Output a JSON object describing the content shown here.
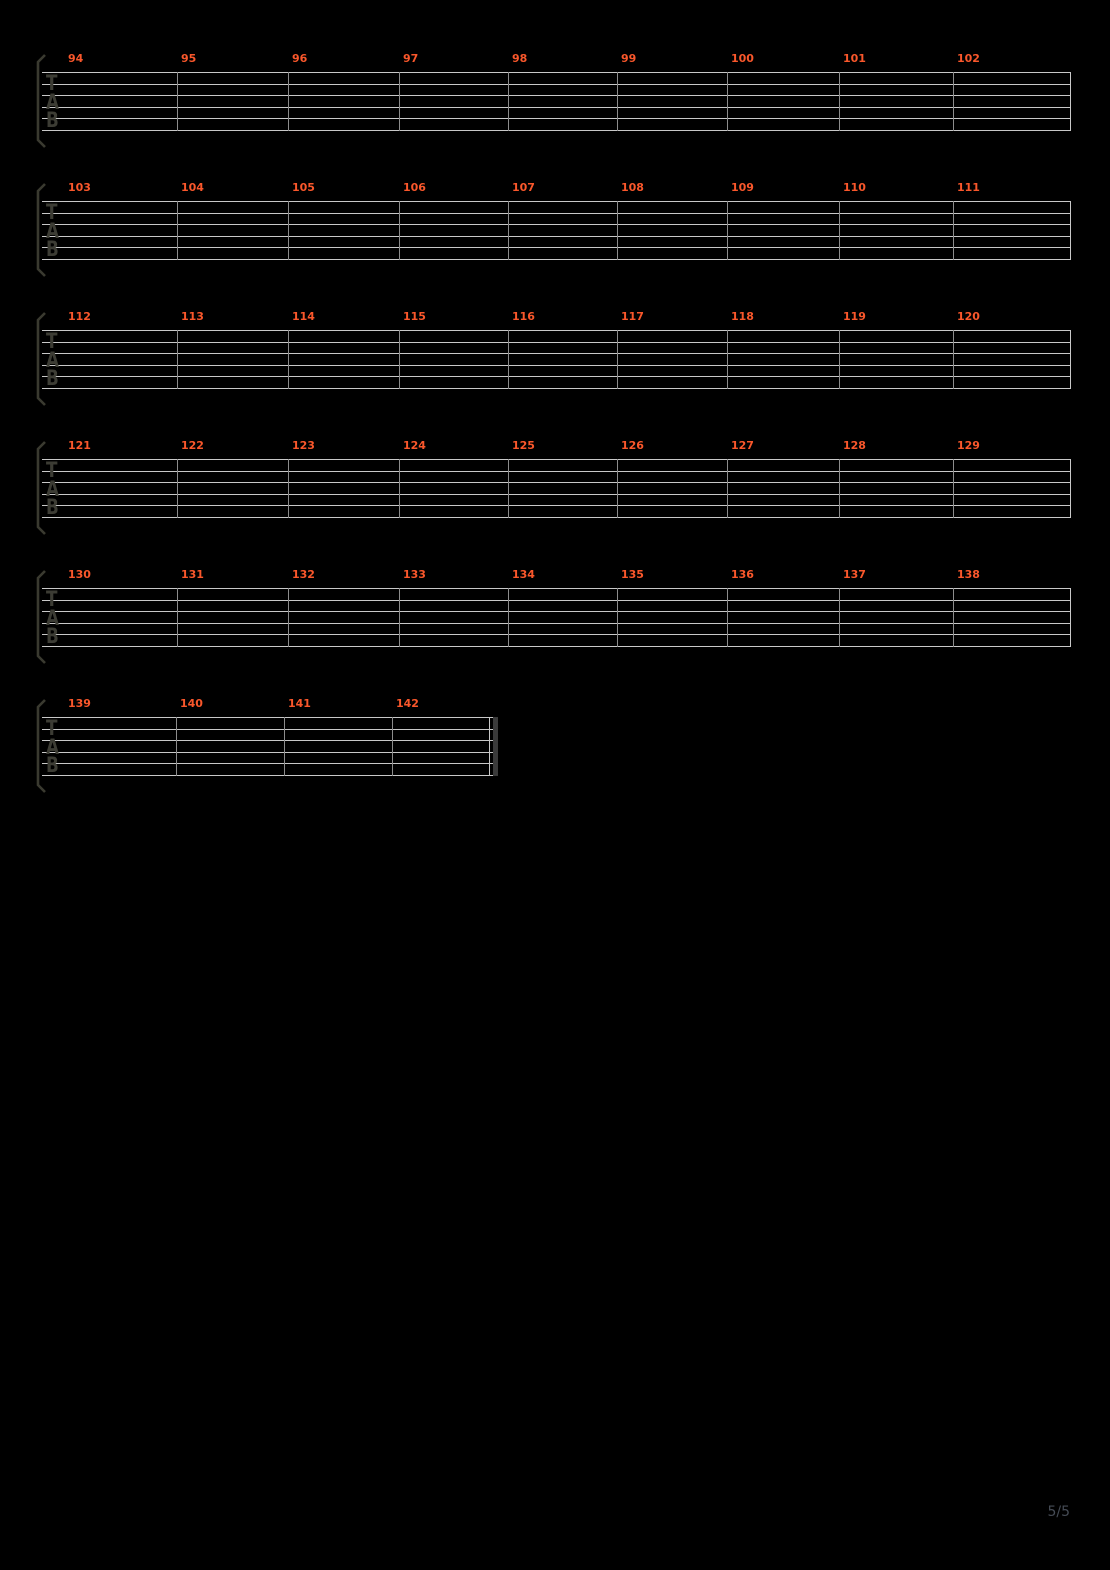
{
  "page": {
    "indicator": "5/5"
  },
  "tab": {
    "clef_letters": [
      "T",
      "A",
      "B"
    ],
    "string_count": 6
  },
  "colors": {
    "background": "#000000",
    "measure_number": "#f9572b",
    "staff_line": "#c8c8c8",
    "barline": "#8c8c8c",
    "system_end_barline": "#c8c8c8",
    "final_thick_barline": "#3a3a3a",
    "clef": "#3c3c34",
    "bracket": "#3a3a30",
    "page_indicator": "#454b55"
  },
  "systems": [
    {
      "measures": [
        "94",
        "95",
        "96",
        "97",
        "98",
        "99",
        "100",
        "101",
        "102"
      ]
    },
    {
      "measures": [
        "103",
        "104",
        "105",
        "106",
        "107",
        "108",
        "109",
        "110",
        "111"
      ]
    },
    {
      "measures": [
        "112",
        "113",
        "114",
        "115",
        "116",
        "117",
        "118",
        "119",
        "120"
      ]
    },
    {
      "measures": [
        "121",
        "122",
        "123",
        "124",
        "125",
        "126",
        "127",
        "128",
        "129"
      ]
    },
    {
      "measures": [
        "130",
        "131",
        "132",
        "133",
        "134",
        "135",
        "136",
        "137",
        "138"
      ]
    },
    {
      "measures": [
        "139",
        "140",
        "141",
        "142"
      ],
      "is_final": true
    }
  ]
}
